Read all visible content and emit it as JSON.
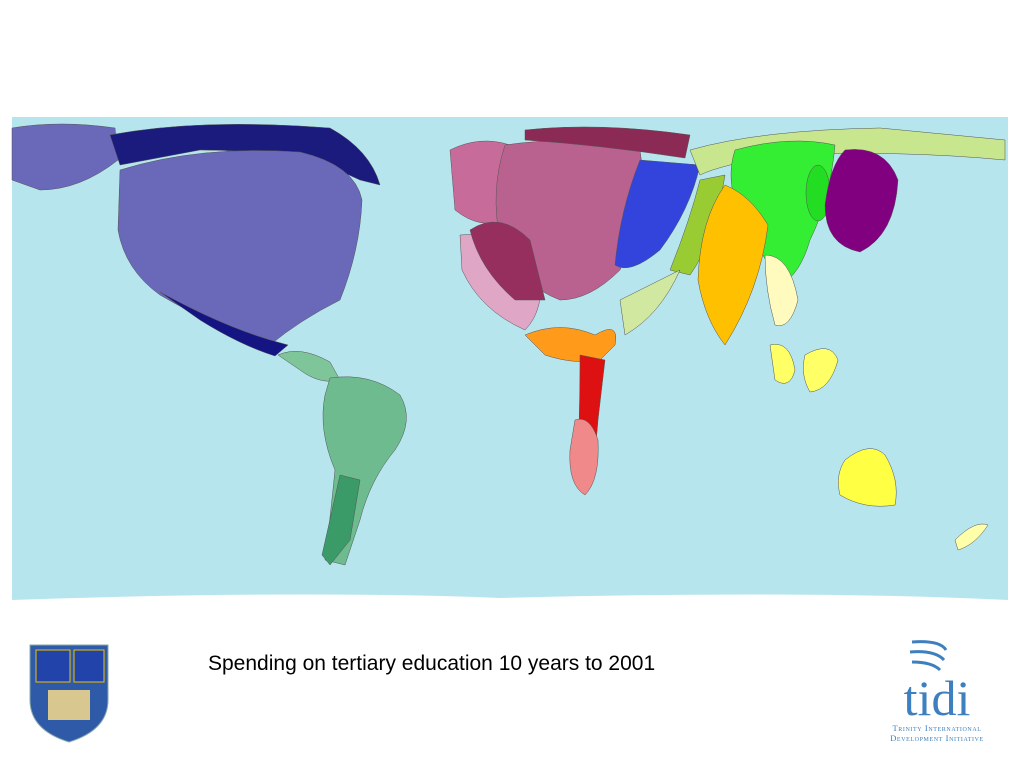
{
  "caption": "Spending on tertiary education 10 years to 2001",
  "logo_right": {
    "wordmark": "tidi",
    "line1": "Trinity International",
    "line2": "Development Initiative"
  }
}
